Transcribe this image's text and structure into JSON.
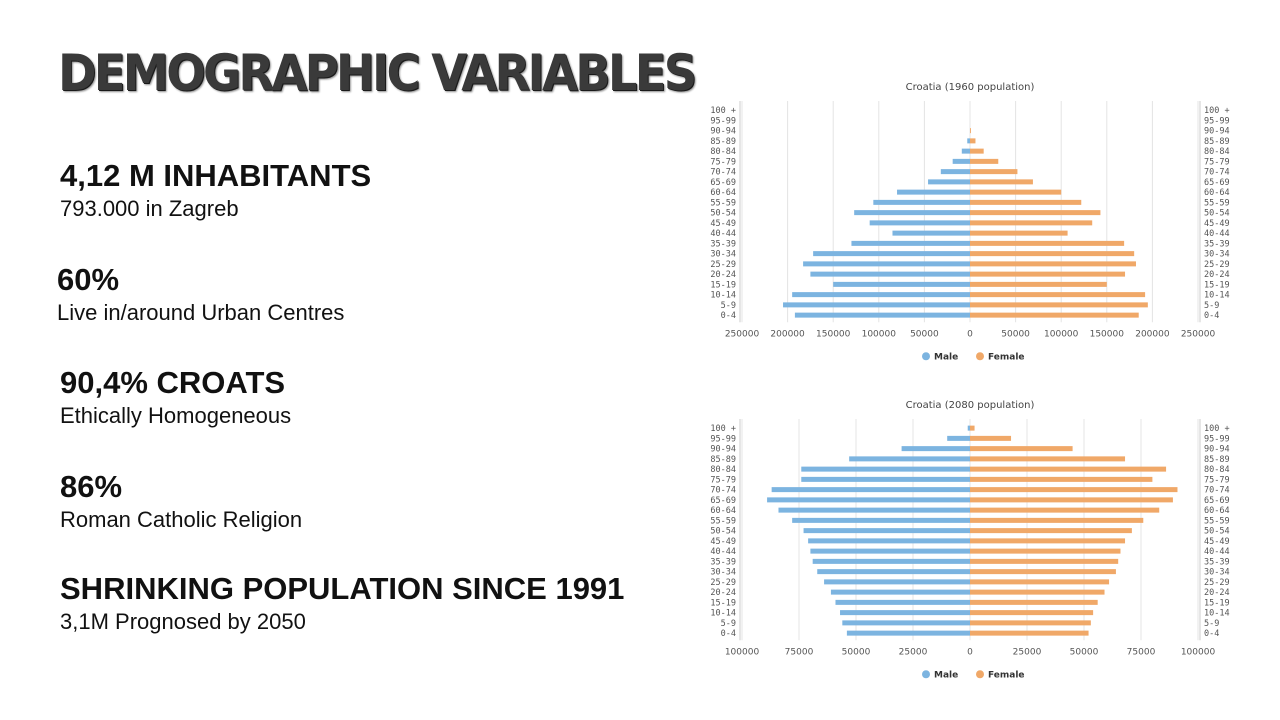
{
  "slide": {
    "title": "DEMOGRAPHIC VARIABLES",
    "stats": [
      {
        "heading": "4,12 M INHABITANTS",
        "subtext": "793.000 in Zagreb"
      },
      {
        "heading": "60%",
        "subtext": "Live in/around Urban Centres"
      },
      {
        "heading": "90,4% CROATS",
        "subtext": "Ethically Homogeneous"
      },
      {
        "heading": "86%",
        "subtext": "Roman Catholic Religion"
      },
      {
        "heading": "SHRINKING POPULATION SINCE 1991",
        "subtext": "3,1M Prognosed by 2050"
      }
    ]
  },
  "colors": {
    "male": "#7cb4e0",
    "female": "#f0a868",
    "grid": "#e4e4e4",
    "axis": "#cccccc"
  },
  "chart_data": [
    {
      "type": "bar",
      "orientation": "horizontal-pyramid",
      "title": "Croatia (1960 population)",
      "categories": [
        "100 +",
        "95-99",
        "90-94",
        "85-89",
        "80-84",
        "75-79",
        "70-74",
        "65-69",
        "60-64",
        "55-59",
        "50-54",
        "45-49",
        "40-44",
        "35-39",
        "30-34",
        "25-29",
        "20-24",
        "15-19",
        "10-14",
        "5-9",
        "0-4"
      ],
      "series": [
        {
          "name": "Male",
          "values": [
            0,
            0,
            0,
            3000,
            9000,
            19000,
            32000,
            46000,
            80000,
            106000,
            127000,
            110000,
            85000,
            130000,
            172000,
            183000,
            175000,
            150000,
            195000,
            205000,
            192000
          ]
        },
        {
          "name": "Female",
          "values": [
            0,
            0,
            1000,
            6000,
            15000,
            31000,
            52000,
            69000,
            100000,
            122000,
            143000,
            134000,
            107000,
            169000,
            180000,
            182000,
            170000,
            150000,
            192000,
            195000,
            185000
          ]
        }
      ],
      "xlim": [
        -250000,
        250000
      ],
      "xticks": [
        "250000",
        "200000",
        "150000",
        "100000",
        "50000",
        "0",
        "50000",
        "100000",
        "150000",
        "200000",
        "250000"
      ],
      "legend": "bottom-center"
    },
    {
      "type": "bar",
      "orientation": "horizontal-pyramid",
      "title": "Croatia (2080 population)",
      "categories": [
        "100 +",
        "95-99",
        "90-94",
        "85-89",
        "80-84",
        "75-79",
        "70-74",
        "65-69",
        "60-64",
        "55-59",
        "50-54",
        "45-49",
        "40-44",
        "35-39",
        "30-34",
        "25-29",
        "20-24",
        "15-19",
        "10-14",
        "5-9",
        "0-4"
      ],
      "series": [
        {
          "name": "Male",
          "values": [
            1000,
            10000,
            30000,
            53000,
            74000,
            74000,
            87000,
            89000,
            84000,
            78000,
            73000,
            71000,
            70000,
            69000,
            67000,
            64000,
            61000,
            59000,
            57000,
            56000,
            54000
          ]
        },
        {
          "name": "Female",
          "values": [
            2000,
            18000,
            45000,
            68000,
            86000,
            80000,
            91000,
            89000,
            83000,
            76000,
            71000,
            68000,
            66000,
            65000,
            64000,
            61000,
            59000,
            56000,
            54000,
            53000,
            52000
          ]
        }
      ],
      "xlim": [
        -100000,
        100000
      ],
      "xticks": [
        "100000",
        "75000",
        "50000",
        "25000",
        "0",
        "25000",
        "50000",
        "75000",
        "100000"
      ],
      "legend": "bottom-center"
    }
  ]
}
